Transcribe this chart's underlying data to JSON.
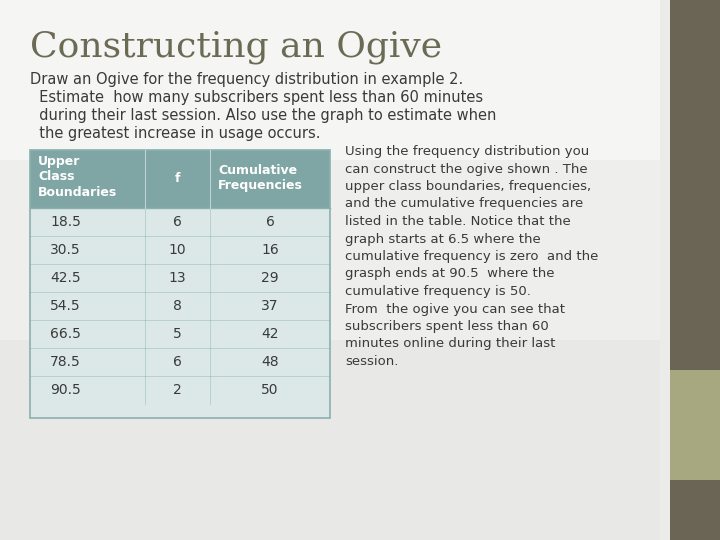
{
  "title": "Constructing an Ogive",
  "subtitle_line1": "Draw an Ogive for the frequency distribution in example 2.",
  "subtitle_line2": "  Estimate  how many subscribers spent less than 60 minutes",
  "subtitle_line3": "  during their last session. Also use the graph to estimate when",
  "subtitle_line4": "  the greatest increase in usage occurs.",
  "table_headers": [
    "Upper\nClass\nBoundaries",
    "f",
    "Cumulative\nFrequencies"
  ],
  "table_data": [
    [
      "18.5",
      "6",
      "6"
    ],
    [
      "30.5",
      "10",
      "16"
    ],
    [
      "42.5",
      "13",
      "29"
    ],
    [
      "54.5",
      "8",
      "37"
    ],
    [
      "66.5",
      "5",
      "42"
    ],
    [
      "78.5",
      "6",
      "48"
    ],
    [
      "90.5",
      "2",
      "50"
    ]
  ],
  "right_text_lines": [
    "Using the frequency distribution you",
    "can construct the ogive shown . The",
    "upper class boundaries, frequencies,",
    "and the cumulative frequencies are",
    "listed in the table. Notice that the",
    "graph starts at 6.5 where the",
    "cumulative frequency is zero  and the",
    "grasph ends at 90.5  where the",
    "cumulative frequency is 50.",
    "From  the ogive you can see that",
    "subscribers spent less than 60",
    "minutes online during their last",
    "session."
  ],
  "bg_color_top": "#f0f0ee",
  "bg_color": "#ebebea",
  "title_color": "#6b6b55",
  "text_color": "#3a3a3a",
  "table_header_bg": "#7fa5a5",
  "table_body_bg": "#dce8e8",
  "table_border_color": "#8ab0b0",
  "sidebar_dark": "#6b6555",
  "sidebar_light": "#a8a880"
}
